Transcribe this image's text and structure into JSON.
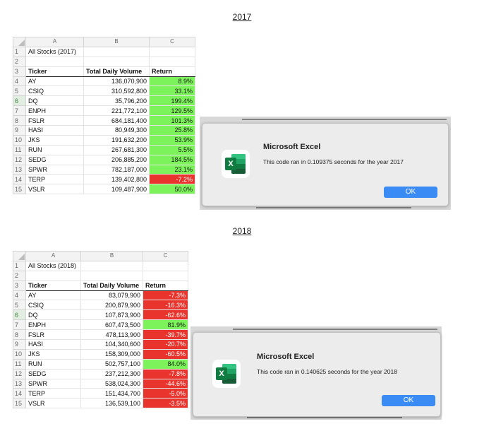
{
  "headings": {
    "y2017": "2017",
    "y2018": "2018"
  },
  "columns": {
    "corner": "",
    "a": "A",
    "b": "B",
    "c": "C"
  },
  "sheet2017": {
    "title": "All Stocks (2017)",
    "header": {
      "ticker": "Ticker",
      "volume": "Total Daily Volume",
      "return": "Return"
    },
    "rows": [
      {
        "ticker": "AY",
        "volume": "136,070,900",
        "ret": "8.9%"
      },
      {
        "ticker": "CSIQ",
        "volume": "310,592,800",
        "ret": "33.1%"
      },
      {
        "ticker": "DQ",
        "volume": "35,796,200",
        "ret": "199.4%"
      },
      {
        "ticker": "ENPH",
        "volume": "221,772,100",
        "ret": "129.5%"
      },
      {
        "ticker": "FSLR",
        "volume": "684,181,400",
        "ret": "101.3%"
      },
      {
        "ticker": "HASI",
        "volume": "80,949,300",
        "ret": "25.8%"
      },
      {
        "ticker": "JKS",
        "volume": "191,632,200",
        "ret": "53.9%"
      },
      {
        "ticker": "RUN",
        "volume": "267,681,300",
        "ret": "5.5%"
      },
      {
        "ticker": "SEDG",
        "volume": "206,885,200",
        "ret": "184.5%"
      },
      {
        "ticker": "SPWR",
        "volume": "782,187,000",
        "ret": "23.1%"
      },
      {
        "ticker": "TERP",
        "volume": "139,402,800",
        "ret": "-7.2%"
      },
      {
        "ticker": "VSLR",
        "volume": "109,487,900",
        "ret": "50.0%"
      }
    ]
  },
  "sheet2018": {
    "title": "All Stocks (2018)",
    "header": {
      "ticker": "Ticker",
      "volume": "Total Daily Volume",
      "return": "Return"
    },
    "rows": [
      {
        "ticker": "AY",
        "volume": "83,079,900",
        "ret": "-7.3%"
      },
      {
        "ticker": "CSIQ",
        "volume": "200,879,900",
        "ret": "-16.3%"
      },
      {
        "ticker": "DQ",
        "volume": "107,873,900",
        "ret": "-62.6%"
      },
      {
        "ticker": "ENPH",
        "volume": "607,473,500",
        "ret": "81.9%"
      },
      {
        "ticker": "FSLR",
        "volume": "478,113,900",
        "ret": "-39.7%"
      },
      {
        "ticker": "HASI",
        "volume": "104,340,600",
        "ret": "-20.7%"
      },
      {
        "ticker": "JKS",
        "volume": "158,309,000",
        "ret": "-60.5%"
      },
      {
        "ticker": "RUN",
        "volume": "502,757,100",
        "ret": "84.0%"
      },
      {
        "ticker": "SEDG",
        "volume": "237,212,300",
        "ret": "-7.8%"
      },
      {
        "ticker": "SPWR",
        "volume": "538,024,300",
        "ret": "-44.6%"
      },
      {
        "ticker": "TERP",
        "volume": "151,434,700",
        "ret": "-5.0%"
      },
      {
        "ticker": "VSLR",
        "volume": "136,539,100",
        "ret": "-3.5%"
      }
    ]
  },
  "dialog2017": {
    "title": "Microsoft Excel",
    "message": "This code ran in 0.109375 seconds for the year 2017",
    "ok": "OK",
    "icon": "excel-icon",
    "icon_letter": "X"
  },
  "dialog2018": {
    "title": "Microsoft Excel",
    "message": "This code ran in 0.140625 seconds for the year 2018",
    "ok": "OK",
    "icon": "excel-icon",
    "icon_letter": "X"
  },
  "colors": {
    "positive_fill": "#7cf35a",
    "negative_fill": "#e8342c",
    "ok_button": "#3b8bf5",
    "excel_green": "#107c41"
  }
}
